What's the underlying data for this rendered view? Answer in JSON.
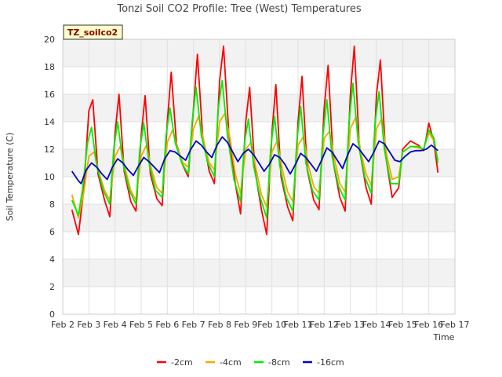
{
  "chart_data": {
    "type": "line",
    "title": "Tonzi Soil CO2 Profile: Tree (West) Temperatures",
    "xlabel": "Time",
    "ylabel": "Soil Temperature (C)",
    "badge": "TZ_soilco2",
    "xlim": [
      2,
      17
    ],
    "ylim": [
      0,
      20
    ],
    "x_ticks": [
      {
        "v": 2,
        "label": "Feb 2"
      },
      {
        "v": 3,
        "label": "Feb 3"
      },
      {
        "v": 4,
        "label": "Feb 4"
      },
      {
        "v": 5,
        "label": "Feb 5"
      },
      {
        "v": 6,
        "label": "Feb 6"
      },
      {
        "v": 7,
        "label": "Feb 7"
      },
      {
        "v": 8,
        "label": "Feb 8"
      },
      {
        "v": 9,
        "label": "Feb 9"
      },
      {
        "v": 10,
        "label": "Feb 10"
      },
      {
        "v": 11,
        "label": "Feb 11"
      },
      {
        "v": 12,
        "label": "Feb 12"
      },
      {
        "v": 13,
        "label": "Feb 13"
      },
      {
        "v": 14,
        "label": "Feb 14"
      },
      {
        "v": 15,
        "label": "Feb 15"
      },
      {
        "v": 16,
        "label": "Feb 16"
      },
      {
        "v": 17,
        "label": "Feb 17"
      }
    ],
    "y_ticks": [
      {
        "v": 0,
        "label": "0"
      },
      {
        "v": 2,
        "label": "2"
      },
      {
        "v": 4,
        "label": "4"
      },
      {
        "v": 6,
        "label": "6"
      },
      {
        "v": 8,
        "label": "8"
      },
      {
        "v": 10,
        "label": "10"
      },
      {
        "v": 12,
        "label": "12"
      },
      {
        "v": 14,
        "label": "14"
      },
      {
        "v": 16,
        "label": "16"
      },
      {
        "v": 18,
        "label": "18"
      },
      {
        "v": 20,
        "label": "20"
      }
    ],
    "grid": true,
    "legend_position": "bottom",
    "series": [
      {
        "name": "-2cm",
        "color": "#ff0000",
        "x": [
          2.35,
          2.6,
          2.8,
          3.0,
          3.15,
          3.35,
          3.6,
          3.8,
          4.0,
          4.15,
          4.35,
          4.6,
          4.8,
          5.0,
          5.15,
          5.35,
          5.6,
          5.8,
          6.0,
          6.15,
          6.35,
          6.6,
          6.8,
          7.0,
          7.15,
          7.35,
          7.6,
          7.8,
          8.0,
          8.15,
          8.35,
          8.6,
          8.8,
          9.0,
          9.15,
          9.35,
          9.6,
          9.8,
          10.0,
          10.15,
          10.35,
          10.6,
          10.8,
          11.0,
          11.15,
          11.35,
          11.6,
          11.8,
          12.0,
          12.15,
          12.35,
          12.6,
          12.8,
          13.0,
          13.15,
          13.35,
          13.6,
          13.8,
          14.0,
          14.15,
          14.35,
          14.6,
          14.85,
          15.0,
          15.3,
          15.6,
          15.8,
          15.9,
          16.0,
          16.2,
          16.35
        ],
        "y": [
          7.6,
          5.8,
          9.0,
          14.8,
          15.6,
          10.2,
          8.3,
          7.1,
          13.2,
          16.0,
          10.4,
          8.2,
          7.5,
          13.0,
          15.9,
          10.2,
          8.4,
          7.9,
          14.0,
          17.6,
          12.4,
          10.8,
          10.0,
          15.0,
          18.9,
          13.0,
          10.4,
          9.5,
          17.0,
          19.5,
          13.2,
          9.5,
          7.3,
          14.0,
          16.5,
          10.5,
          7.6,
          5.8,
          13.2,
          16.7,
          10.0,
          7.8,
          6.8,
          14.0,
          17.3,
          10.5,
          8.3,
          7.6,
          15.0,
          18.1,
          11.0,
          8.5,
          7.5,
          16.0,
          19.5,
          12.0,
          9.2,
          8.0,
          16.0,
          18.5,
          11.5,
          8.5,
          9.2,
          12.0,
          12.6,
          12.3,
          11.9,
          12.8,
          13.9,
          12.5,
          10.3
        ]
      },
      {
        "name": "-4cm",
        "color": "#ffa500",
        "x": [
          2.35,
          2.6,
          2.8,
          3.0,
          3.2,
          3.4,
          3.6,
          3.8,
          4.0,
          4.2,
          4.4,
          4.6,
          4.8,
          5.0,
          5.2,
          5.4,
          5.6,
          5.8,
          6.0,
          6.2,
          6.4,
          6.6,
          6.8,
          7.0,
          7.2,
          7.4,
          7.6,
          7.8,
          8.0,
          8.2,
          8.4,
          8.6,
          8.8,
          9.0,
          9.2,
          9.4,
          9.6,
          9.8,
          10.0,
          10.2,
          10.4,
          10.6,
          10.8,
          11.0,
          11.2,
          11.4,
          11.6,
          11.8,
          12.0,
          12.2,
          12.4,
          12.6,
          12.8,
          13.0,
          13.2,
          13.4,
          13.6,
          13.8,
          14.0,
          14.2,
          14.4,
          14.6,
          14.85,
          15.0,
          15.3,
          15.6,
          15.8,
          16.0,
          16.2,
          16.35
        ],
        "y": [
          8.7,
          7.0,
          8.8,
          11.5,
          11.8,
          10.2,
          9.0,
          8.3,
          11.5,
          12.2,
          10.5,
          9.0,
          8.3,
          11.5,
          12.3,
          10.5,
          9.2,
          8.8,
          12.5,
          13.4,
          12.0,
          11.0,
          10.7,
          13.5,
          14.4,
          12.5,
          11.0,
          10.5,
          14.0,
          14.6,
          12.8,
          10.2,
          8.8,
          12.0,
          12.5,
          10.5,
          8.7,
          7.8,
          11.8,
          12.6,
          10.5,
          8.9,
          8.2,
          12.3,
          12.9,
          10.8,
          9.3,
          8.8,
          12.8,
          13.3,
          11.2,
          9.5,
          8.9,
          13.5,
          14.3,
          11.8,
          10.2,
          9.4,
          13.5,
          14.2,
          11.5,
          9.8,
          10.0,
          11.8,
          12.2,
          12.1,
          12.0,
          13.2,
          12.6,
          11.2
        ]
      },
      {
        "name": "-8cm",
        "color": "#00ee00",
        "x": [
          2.35,
          2.6,
          2.75,
          2.95,
          3.1,
          3.3,
          3.55,
          3.8,
          3.95,
          4.1,
          4.3,
          4.55,
          4.8,
          4.95,
          5.1,
          5.3,
          5.55,
          5.8,
          5.95,
          6.1,
          6.3,
          6.55,
          6.8,
          6.95,
          7.1,
          7.3,
          7.55,
          7.8,
          7.95,
          8.1,
          8.3,
          8.55,
          8.8,
          8.95,
          9.1,
          9.3,
          9.55,
          9.8,
          9.95,
          10.1,
          10.3,
          10.55,
          10.8,
          10.95,
          11.1,
          11.3,
          11.55,
          11.8,
          11.95,
          12.1,
          12.3,
          12.55,
          12.8,
          12.95,
          13.1,
          13.3,
          13.55,
          13.8,
          13.95,
          14.1,
          14.3,
          14.55,
          14.85,
          15.0,
          15.3,
          15.6,
          15.8,
          16.0,
          16.2,
          16.35
        ],
        "y": [
          8.3,
          7.2,
          9.0,
          12.5,
          13.6,
          10.8,
          9.0,
          8.0,
          12.0,
          14.0,
          11.0,
          9.0,
          8.0,
          12.0,
          13.9,
          11.0,
          9.0,
          8.5,
          13.0,
          15.0,
          12.5,
          11.0,
          10.2,
          14.0,
          16.5,
          13.0,
          11.0,
          10.0,
          15.0,
          17.0,
          13.0,
          9.8,
          8.2,
          12.5,
          14.2,
          10.8,
          8.5,
          7.0,
          12.0,
          14.4,
          10.8,
          8.5,
          7.5,
          12.5,
          15.1,
          11.0,
          9.0,
          8.3,
          13.0,
          15.6,
          11.5,
          9.3,
          8.3,
          14.0,
          16.8,
          12.5,
          10.0,
          8.8,
          14.0,
          16.2,
          12.0,
          9.5,
          9.5,
          11.8,
          12.2,
          12.2,
          12.0,
          13.4,
          12.8,
          11.0
        ]
      },
      {
        "name": "-16cm",
        "color": "#0000cc",
        "x": [
          2.35,
          2.6,
          2.7,
          2.9,
          3.1,
          3.3,
          3.5,
          3.7,
          3.9,
          4.1,
          4.3,
          4.5,
          4.7,
          4.9,
          5.1,
          5.3,
          5.5,
          5.7,
          5.9,
          6.1,
          6.3,
          6.5,
          6.7,
          6.9,
          7.1,
          7.3,
          7.5,
          7.7,
          7.9,
          8.1,
          8.3,
          8.5,
          8.7,
          8.9,
          9.1,
          9.3,
          9.5,
          9.7,
          9.9,
          10.1,
          10.3,
          10.5,
          10.7,
          10.9,
          11.1,
          11.3,
          11.5,
          11.7,
          11.9,
          12.1,
          12.3,
          12.5,
          12.7,
          12.9,
          13.1,
          13.3,
          13.5,
          13.7,
          13.9,
          14.1,
          14.3,
          14.5,
          14.7,
          14.9,
          15.1,
          15.3,
          15.5,
          15.7,
          15.9,
          16.1,
          16.35
        ],
        "y": [
          10.4,
          9.7,
          9.5,
          10.5,
          11.0,
          10.7,
          10.2,
          9.8,
          10.7,
          11.3,
          11.0,
          10.5,
          10.1,
          10.8,
          11.4,
          11.1,
          10.7,
          10.3,
          11.3,
          11.9,
          11.8,
          11.5,
          11.2,
          12.0,
          12.6,
          12.3,
          11.8,
          11.4,
          12.3,
          12.9,
          12.5,
          11.8,
          11.1,
          11.7,
          12.0,
          11.6,
          11.0,
          10.4,
          10.9,
          11.6,
          11.4,
          10.9,
          10.2,
          10.9,
          11.7,
          11.4,
          10.9,
          10.4,
          11.2,
          12.1,
          11.8,
          11.2,
          10.6,
          11.6,
          12.4,
          12.1,
          11.6,
          11.1,
          11.8,
          12.6,
          12.4,
          11.8,
          11.2,
          11.1,
          11.5,
          11.8,
          11.9,
          11.9,
          12.0,
          12.3,
          11.9
        ]
      }
    ]
  }
}
